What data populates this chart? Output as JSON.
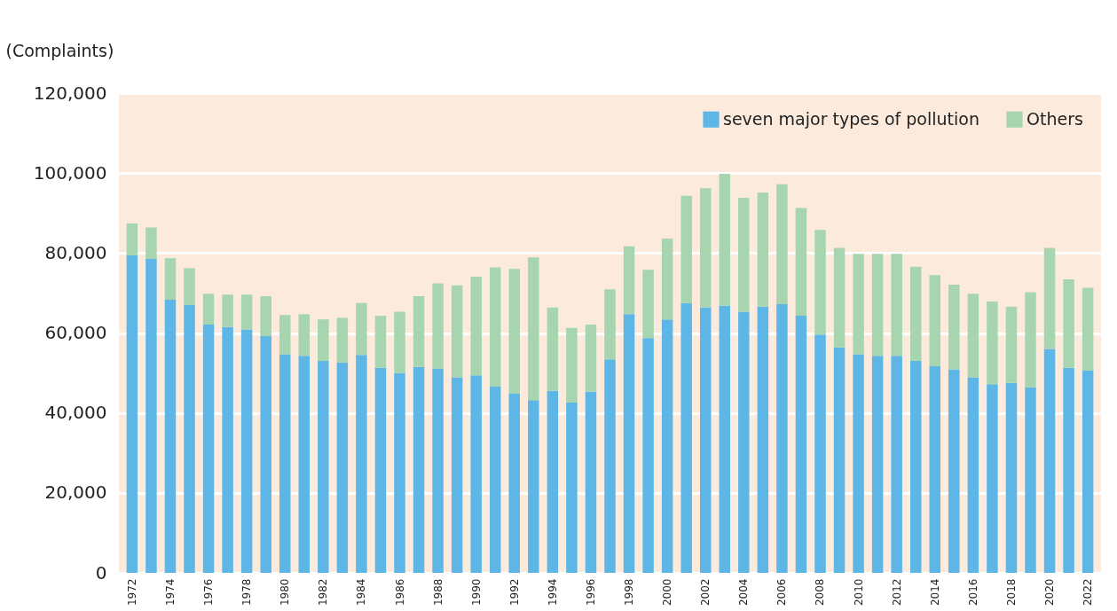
{
  "chart_data": {
    "type": "bar",
    "ylabel": "(Complaints)",
    "stacked": true,
    "legend": "top right",
    "grid": "y",
    "categories": [
      "1972",
      null,
      "1974",
      null,
      "1976",
      null,
      "1978",
      null,
      "1980",
      null,
      "1982",
      null,
      "1984",
      null,
      "1986",
      null,
      "1988",
      null,
      "1990",
      null,
      "1992",
      null,
      "1994",
      null,
      "1996",
      null,
      "1998",
      null,
      "2000",
      null,
      "2002",
      null,
      "2004",
      null,
      "2006",
      null,
      "2008",
      null,
      "2010",
      null,
      "2012",
      null,
      "2014",
      null,
      "2016",
      null,
      "2018",
      null,
      "2020",
      null,
      "2022"
    ],
    "series": [
      {
        "name": "seven major types of pollution",
        "color": "#5db6e6",
        "values": [
          79400,
          78500,
          68300,
          67000,
          62100,
          61500,
          60900,
          59200,
          54700,
          54300,
          53000,
          52600,
          54500,
          51300,
          50000,
          51500,
          51100,
          48900,
          49400,
          46600,
          44900,
          43200,
          45500,
          42600,
          45300,
          53400,
          64700,
          58700,
          63400,
          67500,
          66400,
          66800,
          65300,
          66600,
          67200,
          64300,
          59600,
          56400,
          54700,
          54300,
          54300,
          53000,
          51700,
          50900,
          48900,
          47200,
          47500,
          46400,
          56000,
          51300,
          50600
        ]
      },
      {
        "name": "Others",
        "color": "#a6d5b0",
        "values": [
          8000,
          7900,
          10400,
          9200,
          7700,
          8100,
          8700,
          10000,
          9800,
          10400,
          10400,
          11200,
          13000,
          13000,
          15300,
          17700,
          21300,
          23000,
          24700,
          29800,
          31100,
          35700,
          20900,
          18700,
          16800,
          17500,
          17000,
          17100,
          20200,
          26800,
          29800,
          33000,
          28500,
          28500,
          30000,
          27000,
          26200,
          24900,
          25100,
          25500,
          25500,
          23600,
          22800,
          21200,
          20900,
          20700,
          19100,
          23800,
          25300,
          22100,
          20700
        ]
      }
    ],
    "ylim": [
      0,
      120000
    ],
    "yticks": [
      0,
      {
        "value": 20000,
        "label": "20,000"
      },
      {
        "value": 40000,
        "label": "40,000"
      },
      {
        "value": 60000,
        "label": "60,000"
      },
      {
        "value": 80000,
        "label": "80,000"
      },
      {
        "value": 100000,
        "label": "100,000"
      },
      {
        "value": 120000,
        "label": "120,000"
      }
    ]
  }
}
